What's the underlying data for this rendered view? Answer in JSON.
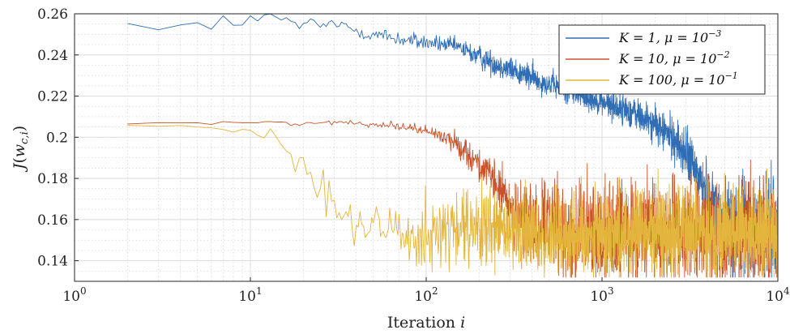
{
  "chart_data": {
    "type": "line",
    "xscale": "log",
    "xlim": [
      1,
      10000
    ],
    "ylim": [
      0.13,
      0.26
    ],
    "xlabel": "Iteration i",
    "ylabel": "J(w_{c,i})",
    "grid": true,
    "minor_grid": true,
    "legend_position": "top-right",
    "xticks": [
      1,
      10,
      100,
      1000,
      10000
    ],
    "xtick_labels": [
      {
        "base": "10",
        "exp": "0"
      },
      {
        "base": "10",
        "exp": "1"
      },
      {
        "base": "10",
        "exp": "2"
      },
      {
        "base": "10",
        "exp": "3"
      },
      {
        "base": "10",
        "exp": "4"
      }
    ],
    "yticks": [
      0.14,
      0.16,
      0.18,
      0.2,
      0.22,
      0.24,
      0.26
    ],
    "ytick_labels": [
      "0.14",
      "0.16",
      "0.18",
      "0.2",
      "0.22",
      "0.24",
      "0.26"
    ],
    "series": [
      {
        "name": "K = 1, μ = 10^{-3}",
        "color": "#2f6db5",
        "x": [
          2,
          3,
          4,
          5,
          6,
          7,
          8,
          10,
          12,
          15,
          20,
          30,
          50,
          80,
          100,
          150,
          200,
          300,
          500,
          800,
          1000,
          1500,
          2000,
          2500,
          3000,
          3500,
          4000,
          4500,
          5000,
          6000,
          8000,
          10000
        ],
        "y": [
          0.258,
          0.252,
          0.254,
          0.255,
          0.25,
          0.257,
          0.256,
          0.258,
          0.259,
          0.257,
          0.254,
          0.255,
          0.25,
          0.247,
          0.246,
          0.244,
          0.239,
          0.233,
          0.226,
          0.22,
          0.217,
          0.212,
          0.206,
          0.2,
          0.192,
          0.182,
          0.171,
          0.162,
          0.156,
          0.155,
          0.155,
          0.155
        ],
        "noise": [
          0.002,
          0.002,
          0.002,
          0.002,
          0.002,
          0.002,
          0.002,
          0.002,
          0.002,
          0.002,
          0.002,
          0.002,
          0.002,
          0.002,
          0.002,
          0.002,
          0.003,
          0.003,
          0.003,
          0.003,
          0.003,
          0.004,
          0.004,
          0.005,
          0.006,
          0.007,
          0.008,
          0.01,
          0.012,
          0.012,
          0.012,
          0.012
        ]
      },
      {
        "name": "K = 10, μ = 10^{-2}",
        "color": "#c8532a",
        "x": [
          2,
          3,
          5,
          10,
          20,
          40,
          60,
          80,
          100,
          130,
          160,
          200,
          250,
          300,
          350,
          400,
          500,
          700,
          1000,
          2000,
          5000,
          10000
        ],
        "y": [
          0.207,
          0.207,
          0.207,
          0.207,
          0.207,
          0.207,
          0.206,
          0.205,
          0.203,
          0.2,
          0.195,
          0.187,
          0.177,
          0.167,
          0.16,
          0.157,
          0.155,
          0.154,
          0.154,
          0.154,
          0.154,
          0.154
        ],
        "noise": [
          0.0005,
          0.0005,
          0.0005,
          0.0005,
          0.0005,
          0.0006,
          0.0008,
          0.001,
          0.0015,
          0.002,
          0.003,
          0.004,
          0.005,
          0.006,
          0.008,
          0.01,
          0.011,
          0.012,
          0.012,
          0.012,
          0.012,
          0.012
        ]
      },
      {
        "name": "K = 100, μ = 10^{-1}",
        "color": "#e3b53c",
        "x": [
          2,
          5,
          10,
          13,
          15,
          17,
          20,
          25,
          30,
          35,
          40,
          50,
          70,
          100,
          200,
          500,
          1000,
          2000,
          5000,
          10000
        ],
        "y": [
          0.206,
          0.205,
          0.204,
          0.203,
          0.199,
          0.193,
          0.185,
          0.177,
          0.169,
          0.162,
          0.158,
          0.155,
          0.154,
          0.154,
          0.154,
          0.154,
          0.154,
          0.154,
          0.154,
          0.154
        ],
        "noise": [
          0.0008,
          0.0008,
          0.001,
          0.002,
          0.003,
          0.004,
          0.004,
          0.005,
          0.006,
          0.006,
          0.006,
          0.007,
          0.008,
          0.009,
          0.01,
          0.011,
          0.011,
          0.011,
          0.011,
          0.011
        ]
      }
    ]
  },
  "legend": {
    "entries": [
      {
        "prefix": "K = 1, μ = 10",
        "exp": "−3"
      },
      {
        "prefix": "K = 10, μ = 10",
        "exp": "−2"
      },
      {
        "prefix": "K = 100, μ = 10",
        "exp": "−1"
      }
    ]
  }
}
